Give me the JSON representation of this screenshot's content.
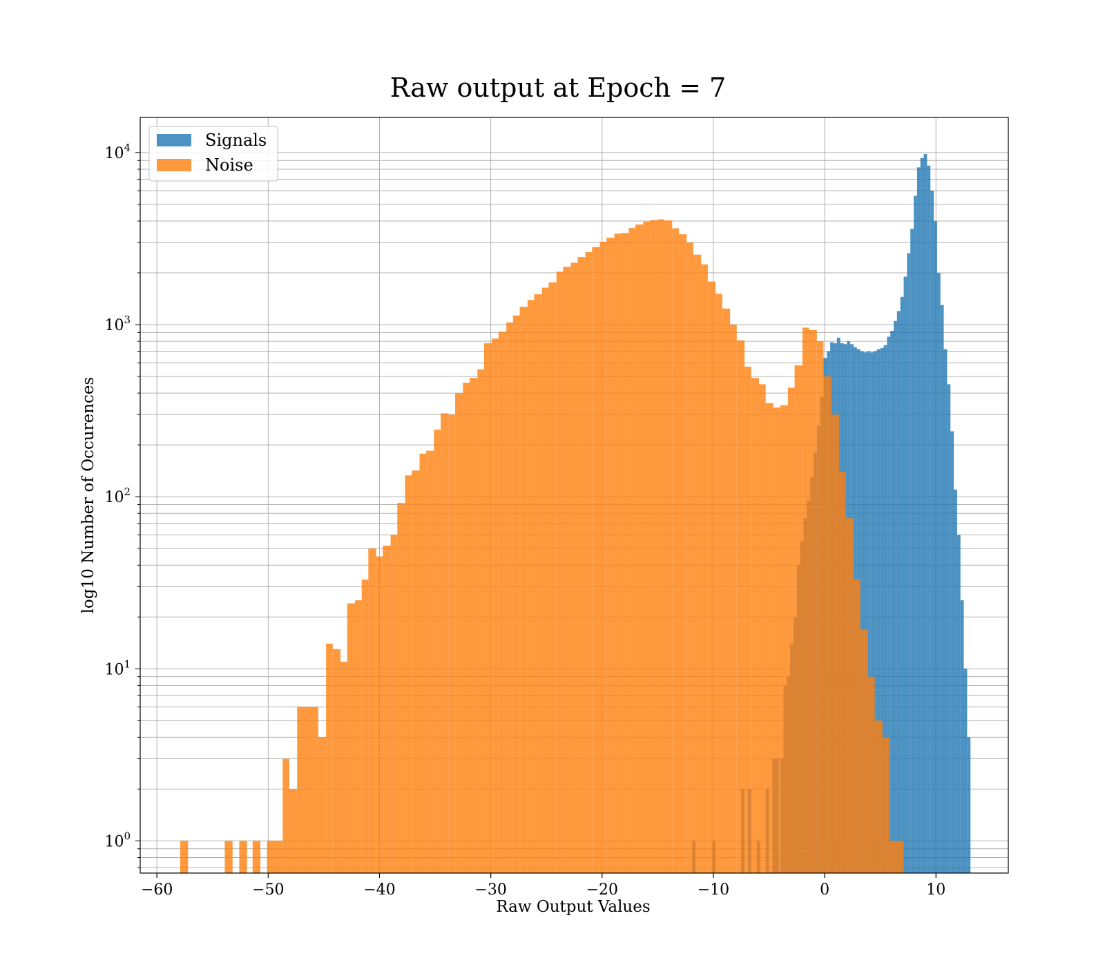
{
  "chart_data": {
    "type": "bar",
    "title": "Raw output at Epoch = 7",
    "xlabel": "Raw Output Values",
    "ylabel": "log10 Number of Occurences",
    "x_scale": "linear",
    "y_scale": "log",
    "xlim": [
      -61.5,
      16.5
    ],
    "ylim": [
      0.65,
      16000
    ],
    "x_ticks": [
      -60,
      -50,
      -40,
      -30,
      -20,
      -10,
      0,
      10
    ],
    "x_tick_labels": [
      "−60",
      "−50",
      "−40",
      "−30",
      "−20",
      "−10",
      "0",
      "10"
    ],
    "y_ticks": [
      1,
      10,
      100,
      1000,
      10000
    ],
    "y_tick_labels": [
      {
        "base": "10",
        "exp": "0"
      },
      {
        "base": "10",
        "exp": "1"
      },
      {
        "base": "10",
        "exp": "2"
      },
      {
        "base": "10",
        "exp": "3"
      },
      {
        "base": "10",
        "exp": "4"
      }
    ],
    "grid": true,
    "legend_position": "upper-left",
    "series": [
      {
        "name": "Signals",
        "color": "#1f77b4",
        "bins": [
          [
            -11.9,
            -11.6,
            1
          ],
          [
            -10.1,
            -9.8,
            1
          ],
          [
            -7.5,
            -7.2,
            2
          ],
          [
            -6.9,
            -6.6,
            2
          ],
          [
            -6.1,
            -5.8,
            1
          ],
          [
            -5.3,
            -5.0,
            2
          ],
          [
            -4.7,
            -4.4,
            3
          ],
          [
            -4.4,
            -4.1,
            3
          ],
          [
            -4.0,
            -3.7,
            3
          ],
          [
            -3.7,
            -3.4,
            8
          ],
          [
            -3.4,
            -3.1,
            9
          ],
          [
            -3.1,
            -2.8,
            14
          ],
          [
            -2.8,
            -2.5,
            20
          ],
          [
            -2.5,
            -2.2,
            40
          ],
          [
            -2.2,
            -1.9,
            55
          ],
          [
            -1.9,
            -1.6,
            75
          ],
          [
            -1.6,
            -1.3,
            95
          ],
          [
            -1.3,
            -1.0,
            130
          ],
          [
            -1.0,
            -0.7,
            180
          ],
          [
            -0.7,
            -0.4,
            260
          ],
          [
            -0.4,
            -0.1,
            380
          ],
          [
            -0.1,
            0.2,
            640
          ],
          [
            0.2,
            0.5,
            700
          ],
          [
            0.5,
            0.8,
            790
          ],
          [
            0.8,
            1.1,
            780
          ],
          [
            1.1,
            1.4,
            840
          ],
          [
            1.4,
            1.7,
            780
          ],
          [
            1.7,
            2.0,
            770
          ],
          [
            2.0,
            2.3,
            800
          ],
          [
            2.3,
            2.6,
            770
          ],
          [
            2.6,
            2.9,
            740
          ],
          [
            2.9,
            3.2,
            720
          ],
          [
            3.2,
            3.5,
            700
          ],
          [
            3.5,
            3.8,
            690
          ],
          [
            3.8,
            4.1,
            700
          ],
          [
            4.1,
            4.4,
            690
          ],
          [
            4.4,
            4.7,
            700
          ],
          [
            4.7,
            5.0,
            720
          ],
          [
            5.0,
            5.3,
            730
          ],
          [
            5.3,
            5.6,
            760
          ],
          [
            5.6,
            5.9,
            850
          ],
          [
            5.9,
            6.2,
            920
          ],
          [
            6.2,
            6.5,
            1050
          ],
          [
            6.5,
            6.8,
            1200
          ],
          [
            6.8,
            7.1,
            1450
          ],
          [
            7.1,
            7.4,
            1900
          ],
          [
            7.4,
            7.7,
            2600
          ],
          [
            7.7,
            8.0,
            3600
          ],
          [
            8.0,
            8.3,
            5600
          ],
          [
            8.3,
            8.6,
            8200
          ],
          [
            8.6,
            8.9,
            9300
          ],
          [
            8.9,
            9.2,
            9800
          ],
          [
            9.2,
            9.5,
            8400
          ],
          [
            9.5,
            9.8,
            6000
          ],
          [
            9.8,
            10.1,
            4000
          ],
          [
            10.1,
            10.4,
            2000
          ],
          [
            10.4,
            10.7,
            1300
          ],
          [
            10.7,
            11.0,
            720
          ],
          [
            11.0,
            11.3,
            450
          ],
          [
            11.3,
            11.6,
            240
          ],
          [
            11.6,
            11.9,
            110
          ],
          [
            11.9,
            12.2,
            60
          ],
          [
            12.2,
            12.5,
            25
          ],
          [
            12.5,
            12.8,
            10
          ],
          [
            12.8,
            13.1,
            4
          ]
        ]
      },
      {
        "name": "Noise",
        "color": "#ff7f0e",
        "bins": [
          [
            -57.9,
            -57.2,
            1
          ],
          [
            -53.9,
            -53.2,
            1
          ],
          [
            -52.6,
            -51.9,
            1
          ],
          [
            -51.4,
            -50.7,
            1
          ],
          [
            -50.1,
            -48.7,
            1
          ],
          [
            -48.7,
            -48.1,
            3
          ],
          [
            -48.1,
            -47.4,
            2
          ],
          [
            -47.4,
            -45.5,
            6
          ],
          [
            -45.5,
            -44.8,
            4
          ],
          [
            -44.8,
            -44.2,
            14
          ],
          [
            -44.2,
            -43.5,
            13
          ],
          [
            -43.5,
            -42.9,
            11
          ],
          [
            -42.9,
            -42.2,
            24
          ],
          [
            -42.2,
            -41.6,
            25
          ],
          [
            -41.6,
            -41.0,
            33
          ],
          [
            -41.0,
            -40.3,
            50
          ],
          [
            -40.3,
            -39.7,
            45
          ],
          [
            -39.7,
            -39.0,
            52
          ],
          [
            -39.0,
            -38.4,
            60
          ],
          [
            -38.4,
            -37.7,
            92
          ],
          [
            -37.7,
            -37.1,
            133
          ],
          [
            -37.1,
            -36.4,
            142
          ],
          [
            -36.4,
            -35.8,
            178
          ],
          [
            -35.8,
            -35.1,
            185
          ],
          [
            -35.1,
            -34.5,
            245
          ],
          [
            -34.5,
            -33.8,
            305
          ],
          [
            -33.8,
            -33.2,
            300
          ],
          [
            -33.2,
            -32.5,
            400
          ],
          [
            -32.5,
            -31.9,
            460
          ],
          [
            -31.9,
            -31.2,
            490
          ],
          [
            -31.2,
            -30.6,
            550
          ],
          [
            -30.6,
            -29.9,
            780
          ],
          [
            -29.9,
            -29.3,
            830
          ],
          [
            -29.3,
            -28.6,
            910
          ],
          [
            -28.6,
            -28.0,
            1030
          ],
          [
            -28.0,
            -27.4,
            1130
          ],
          [
            -27.4,
            -26.7,
            1270
          ],
          [
            -26.7,
            -26.1,
            1390
          ],
          [
            -26.1,
            -25.4,
            1500
          ],
          [
            -25.4,
            -24.8,
            1640
          ],
          [
            -24.8,
            -24.1,
            1760
          ],
          [
            -24.1,
            -23.5,
            2030
          ],
          [
            -23.5,
            -22.8,
            2170
          ],
          [
            -22.8,
            -22.2,
            2290
          ],
          [
            -22.2,
            -21.5,
            2470
          ],
          [
            -21.5,
            -20.9,
            2640
          ],
          [
            -20.9,
            -20.2,
            2820
          ],
          [
            -20.2,
            -19.6,
            3030
          ],
          [
            -19.6,
            -18.9,
            3200
          ],
          [
            -18.9,
            -18.3,
            3380
          ],
          [
            -18.3,
            -17.6,
            3410
          ],
          [
            -17.6,
            -17.0,
            3640
          ],
          [
            -17.0,
            -16.3,
            3820
          ],
          [
            -16.3,
            -15.7,
            3970
          ],
          [
            -15.7,
            -15.0,
            4050
          ],
          [
            -15.0,
            -14.4,
            4090
          ],
          [
            -14.4,
            -13.7,
            4030
          ],
          [
            -13.7,
            -13.1,
            3630
          ],
          [
            -13.1,
            -12.4,
            3350
          ],
          [
            -12.4,
            -11.8,
            3000
          ],
          [
            -11.8,
            -11.1,
            2550
          ],
          [
            -11.1,
            -10.5,
            2240
          ],
          [
            -10.5,
            -9.8,
            1780
          ],
          [
            -9.8,
            -9.2,
            1510
          ],
          [
            -9.2,
            -8.5,
            1240
          ],
          [
            -8.5,
            -7.9,
            1000
          ],
          [
            -7.9,
            -7.2,
            810
          ],
          [
            -7.2,
            -6.6,
            570
          ],
          [
            -6.6,
            -5.9,
            490
          ],
          [
            -5.9,
            -5.3,
            450
          ],
          [
            -5.3,
            -4.6,
            350
          ],
          [
            -4.6,
            -4.0,
            330
          ],
          [
            -4.0,
            -3.3,
            340
          ],
          [
            -3.3,
            -2.7,
            430
          ],
          [
            -2.7,
            -2.0,
            580
          ],
          [
            -2.0,
            -1.4,
            960
          ],
          [
            -1.4,
            -0.7,
            930
          ],
          [
            -0.7,
            -0.1,
            800
          ],
          [
            -0.1,
            0.6,
            500
          ],
          [
            0.6,
            1.3,
            300
          ],
          [
            1.3,
            1.9,
            140
          ],
          [
            1.9,
            2.6,
            75
          ],
          [
            2.6,
            3.2,
            33
          ],
          [
            3.2,
            3.9,
            17
          ],
          [
            3.9,
            4.5,
            9
          ],
          [
            4.5,
            5.2,
            5
          ],
          [
            5.2,
            5.8,
            4
          ],
          [
            5.8,
            7.1,
            1
          ]
        ]
      }
    ]
  }
}
